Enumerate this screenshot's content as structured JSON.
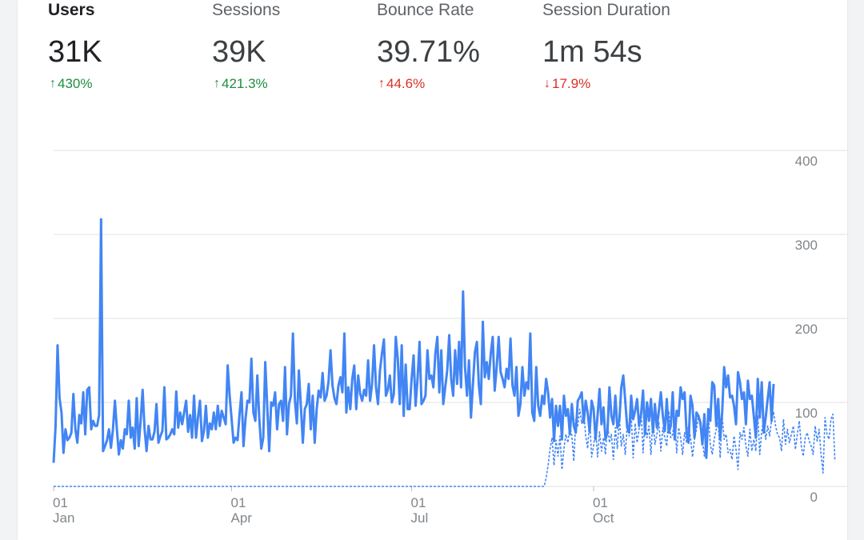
{
  "metrics": [
    {
      "label": "Users",
      "value": "31K",
      "change": "430%",
      "direction": "up",
      "selected": true
    },
    {
      "label": "Sessions",
      "value": "39K",
      "change": "421.3%",
      "direction": "up",
      "selected": false
    },
    {
      "label": "Bounce Rate",
      "value": "39.71%",
      "change": "44.6%",
      "direction": "up",
      "selected": false
    },
    {
      "label": "Session Duration",
      "value": "1m 54s",
      "change": "17.9%",
      "direction": "down",
      "selected": false
    }
  ],
  "colors": {
    "positive": "#1e8e3e",
    "negative": "#d93025",
    "series": "#4285f4",
    "grid": "#e0e0e0"
  },
  "chart_data": {
    "type": "line",
    "ylim": [
      0,
      400
    ],
    "y_ticks": [
      "0",
      "100",
      "200",
      "300",
      "400"
    ],
    "x_ticks": [
      {
        "day": "01",
        "month": "Jan"
      },
      {
        "day": "01",
        "month": "Apr"
      },
      {
        "day": "01",
        "month": "Jul"
      },
      {
        "day": "01",
        "month": "Oct"
      }
    ],
    "grid": true,
    "x_start": "2019-01-01",
    "series": [
      {
        "style": "solid",
        "values": [
          28,
          72,
          168,
          105,
          88,
          40,
          68,
          55,
          58,
          64,
          110,
          68,
          52,
          85,
          75,
          112,
          62,
          115,
          118,
          68,
          78,
          72,
          72,
          85,
          318,
          42,
          48,
          55,
          68,
          46,
          68,
          102,
          68,
          38,
          55,
          45,
          68,
          62,
          102,
          58,
          70,
          45,
          105,
          48,
          78,
          115,
          68,
          42,
          72,
          56,
          56,
          65,
          98,
          52,
          60,
          66,
          118,
          56,
          58,
          62,
          68,
          62,
          113,
          70,
          88,
          74,
          88,
          102,
          65,
          85,
          58,
          108,
          58,
          82,
          102,
          54,
          66,
          96,
          58,
          75,
          68,
          88,
          68,
          96,
          72,
          90,
          82,
          74,
          144,
          108,
          80,
          52,
          58,
          55,
          86,
          112,
          48,
          80,
          102,
          100,
          152,
          88,
          78,
          132,
          80,
          45,
          58,
          148,
          96,
          42,
          100,
          96,
          112,
          68,
          98,
          102,
          78,
          142,
          62,
          98,
          108,
          182,
          102,
          75,
          138,
          96,
          52,
          92,
          98,
          122,
          68,
          108,
          52,
          92,
          114,
          106,
          135,
          102,
          108,
          125,
          162,
          120,
          105,
          98,
          120,
          130,
          112,
          182,
          88,
          118,
          92,
          128,
          144,
          92,
          132,
          110,
          102,
          115,
          108,
          150,
          102,
          122,
          168,
          118,
          98,
          138,
          158,
          175,
          108,
          115,
          132,
          100,
          110,
          178,
          152,
          98,
          168,
          84,
          145,
          92,
          92,
          128,
          156,
          96,
          128,
          172,
          98,
          102,
          108,
          162,
          128,
          132,
          118,
          158,
          178,
          112,
          162,
          98,
          118,
          138,
          180,
          128,
          108,
          162,
          122,
          172,
          118,
          232,
          142,
          108,
          150,
          82,
          122,
          160,
          172,
          120,
          98,
          196,
          130,
          148,
          128,
          158,
          178,
          114,
          142,
          178,
          136,
          128,
          118,
          140,
          128,
          176,
          120,
          108,
          142,
          84,
          98,
          142,
          108,
          124,
          116,
          182,
          88,
          78,
          142,
          96,
          84,
          108,
          98,
          128,
          112,
          82,
          104,
          54,
          96,
          72,
          96,
          56,
          108,
          84,
          92,
          62,
          98,
          72,
          64,
          102,
          106,
          112,
          76,
          102,
          88,
          65,
          102,
          92,
          56,
          84,
          116,
          74,
          94,
          56,
          64,
          118,
          84,
          74,
          108,
          70,
          78,
          118,
          132,
          102,
          70,
          64,
          108,
          80,
          90,
          104,
          72,
          86,
          114,
          62,
          100,
          78,
          104,
          64,
          98,
          70,
          90,
          112,
          84,
          66,
          104,
          64,
          72,
          112,
          56,
          90,
          84,
          118,
          104,
          112,
          64,
          52,
          108,
          96,
          58,
          88,
          84,
          76,
          50,
          86,
          34,
          92,
          78,
          124,
          120,
          72,
          104,
          56,
          88,
          142,
          118,
          132,
          106,
          108,
          96,
          74,
          136,
          124,
          104,
          112,
          74,
          126,
          104,
          108,
          84,
          58,
          128,
          82,
          124,
          64,
          82,
          104,
          124,
          78,
          122
        ]
      },
      {
        "style": "dashed",
        "values": [
          0,
          0,
          0,
          0,
          0,
          0,
          0,
          0,
          0,
          0,
          0,
          0,
          0,
          0,
          0,
          0,
          0,
          0,
          0,
          0,
          0,
          0,
          0,
          0,
          0,
          0,
          0,
          0,
          0,
          0,
          0,
          0,
          0,
          0,
          0,
          0,
          0,
          0,
          0,
          0,
          0,
          0,
          0,
          0,
          0,
          0,
          0,
          0,
          0,
          0,
          0,
          0,
          0,
          0,
          0,
          0,
          0,
          0,
          0,
          0,
          0,
          0,
          0,
          0,
          0,
          0,
          0,
          0,
          0,
          0,
          0,
          0,
          0,
          0,
          0,
          0,
          0,
          0,
          0,
          0,
          0,
          0,
          0,
          0,
          0,
          0,
          0,
          0,
          0,
          0,
          0,
          0,
          0,
          0,
          0,
          0,
          0,
          0,
          0,
          0,
          0,
          0,
          0,
          0,
          0,
          0,
          0,
          0,
          0,
          0,
          0,
          0,
          0,
          0,
          0,
          0,
          0,
          0,
          0,
          0,
          0,
          0,
          0,
          0,
          0,
          0,
          0,
          0,
          0,
          0,
          0,
          0,
          0,
          0,
          0,
          0,
          0,
          0,
          0,
          0,
          0,
          0,
          0,
          0,
          0,
          0,
          0,
          0,
          0,
          0,
          0,
          0,
          0,
          0,
          0,
          0,
          0,
          0,
          0,
          0,
          0,
          0,
          0,
          0,
          0,
          0,
          0,
          0,
          0,
          0,
          0,
          0,
          0,
          0,
          0,
          0,
          0,
          0,
          0,
          0,
          0,
          0,
          0,
          0,
          0,
          0,
          0,
          0,
          0,
          0,
          0,
          0,
          0,
          0,
          0,
          0,
          0,
          0,
          0,
          0,
          0,
          0,
          0,
          0,
          0,
          0,
          0,
          0,
          0,
          0,
          0,
          0,
          0,
          0,
          0,
          0,
          0,
          0,
          0,
          0,
          0,
          0,
          0,
          0,
          0,
          0,
          0,
          0,
          0,
          0,
          0,
          0,
          0,
          0,
          0,
          0,
          0,
          0,
          0,
          0,
          0,
          0,
          0,
          0,
          0,
          0,
          0,
          0,
          0,
          10,
          25,
          45,
          58,
          25,
          55,
          36,
          60,
          20,
          45,
          62,
          52,
          72,
          60,
          30,
          80,
          72,
          92,
          75,
          90,
          60,
          45,
          82,
          35,
          48,
          70,
          35,
          65,
          42,
          58,
          38,
          78,
          52,
          62,
          32,
          70,
          45,
          82,
          48,
          62,
          38,
          72,
          60,
          85,
          34,
          75,
          52,
          68,
          92,
          40,
          78,
          58,
          72,
          38,
          82,
          50,
          62,
          76,
          42,
          70,
          58,
          48,
          90,
          58,
          62,
          82,
          40,
          70,
          58,
          38,
          64,
          52,
          72,
          58,
          35,
          56,
          68,
          82,
          72,
          55,
          36,
          62,
          88,
          50,
          38,
          56,
          68,
          76,
          34,
          84,
          56,
          62,
          40,
          44,
          32,
          60,
          44,
          20,
          64,
          56,
          70,
          48,
          36,
          68,
          42,
          56,
          42,
          84,
          38,
          66,
          80,
          56,
          72,
          60,
          80,
          88,
          72,
          62,
          58,
          42,
          80,
          50,
          68,
          52,
          62,
          72,
          44,
          62,
          78,
          48,
          36,
          58,
          64,
          54,
          48,
          38,
          72,
          54,
          68,
          38,
          16,
          82,
          62,
          56,
          80,
          86,
          30
        ]
      }
    ]
  }
}
